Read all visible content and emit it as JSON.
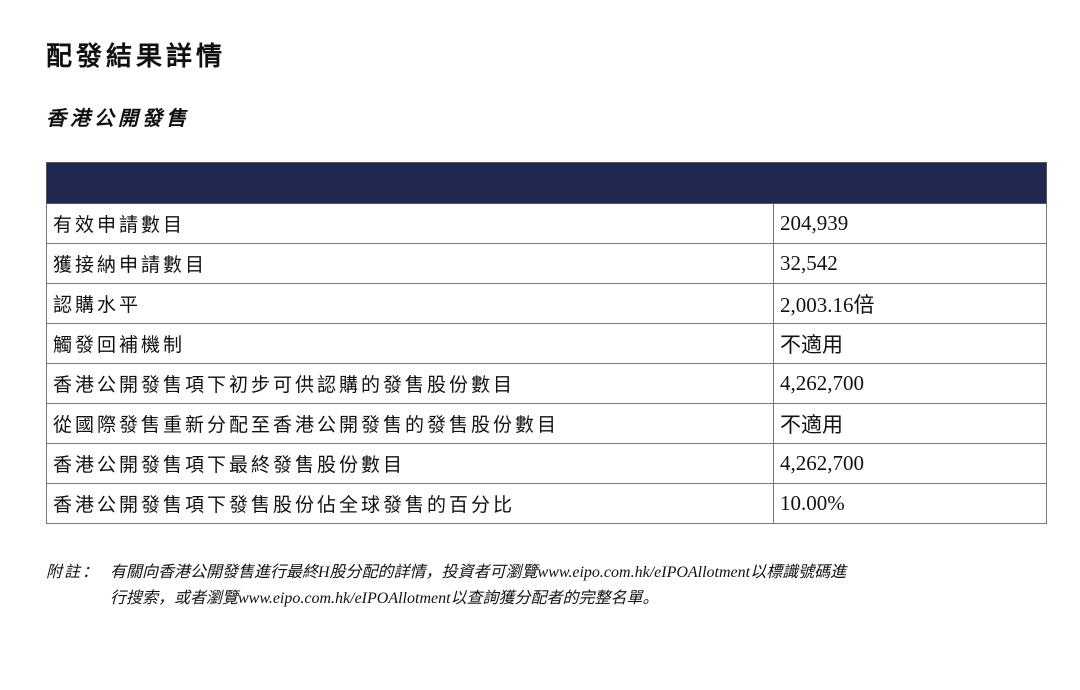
{
  "title": "配發結果詳情",
  "subtitle": "香港公開發售",
  "table": {
    "header_color": "#212850",
    "rows": [
      {
        "label": "有效申請數目",
        "value": "204,939"
      },
      {
        "label": "獲接納申請數目",
        "value": "32,542"
      },
      {
        "label": "認購水平",
        "value": "2,003.16倍"
      },
      {
        "label": "觸發回補機制",
        "value": "不適用"
      },
      {
        "label": "香港公開發售項下初步可供認購的發售股份數目",
        "value": "4,262,700"
      },
      {
        "label": "從國際發售重新分配至香港公開發售的發售股份數目",
        "value": "不適用"
      },
      {
        "label": "香港公開發售項下最終發售股份數目",
        "value": "4,262,700"
      },
      {
        "label": "香港公開發售項下發售股份佔全球發售的百分比",
        "value": "10.00%"
      }
    ]
  },
  "note": {
    "label": "附註：",
    "line1": "有關向香港公開發售進行最終H股分配的詳情，投資者可瀏覽www.eipo.com.hk/eIPOAllotment以標識號碼進",
    "line2": "行搜索，或者瀏覽www.eipo.com.hk/eIPOAllotment以查詢獲分配者的完整名單。"
  }
}
